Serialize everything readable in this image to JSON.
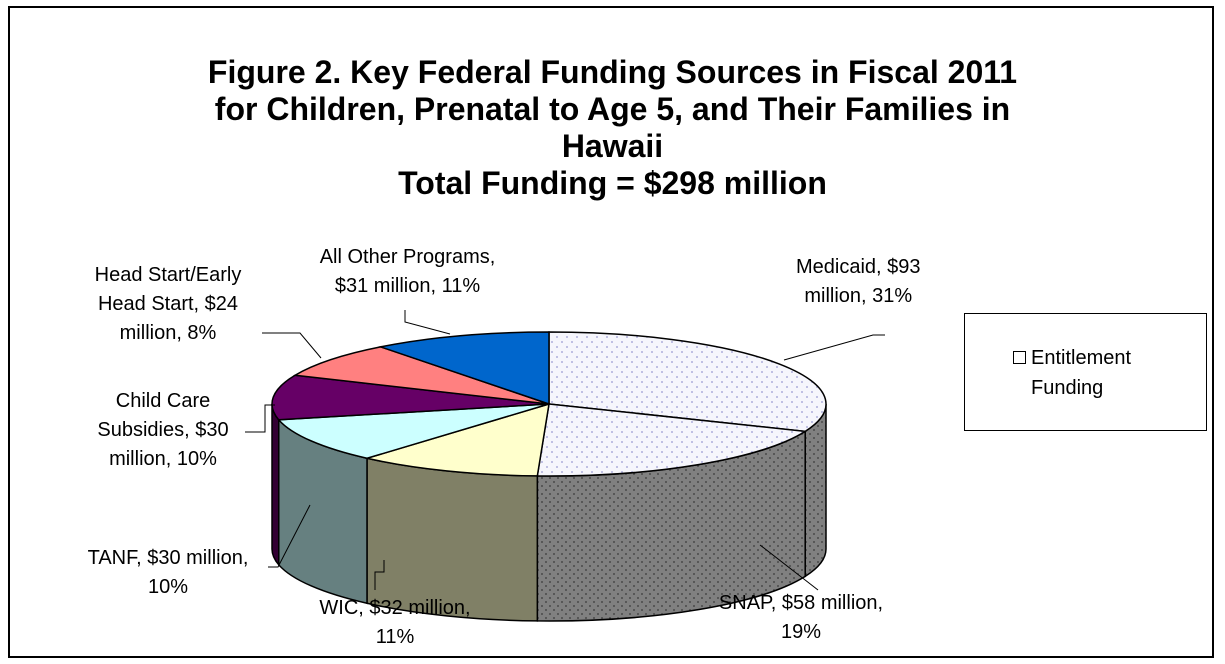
{
  "chart_data": {
    "type": "pie",
    "title": [
      "Figure 2. Key Federal Funding Sources in Fiscal 2011",
      "for Children, Prenatal to Age 5, and Their Families in",
      "Hawaii",
      "Total Funding = $298 million"
    ],
    "unit": "$ million",
    "total": 298,
    "slices": [
      {
        "name": "Medicaid",
        "value": 93,
        "percent": 31,
        "label_lines": [
          "Medicaid, $93",
          "million, 31%"
        ],
        "top": "#f4f4fc",
        "side": "#7f7f7f",
        "dotted": true
      },
      {
        "name": "SNAP",
        "value": 58,
        "percent": 19,
        "label_lines": [
          "SNAP, $58 million,",
          "19%"
        ],
        "top": "#f4f4fc",
        "side": "#7f7f7f",
        "dotted": true
      },
      {
        "name": "WIC",
        "value": 32,
        "percent": 11,
        "label_lines": [
          "WIC, $32 million,",
          "11%"
        ],
        "top": "#ffffcc",
        "side": "#808066",
        "dotted": false
      },
      {
        "name": "TANF",
        "value": 30,
        "percent": 10,
        "label_lines": [
          "TANF, $30 million,",
          "10%"
        ],
        "top": "#ccffff",
        "side": "#668080",
        "dotted": false
      },
      {
        "name": "Child Care Subsidies",
        "value": 30,
        "percent": 10,
        "label_lines": [
          "Child Care",
          "Subsidies, $30",
          "million, 10%"
        ],
        "top": "#660066",
        "side": "#330033",
        "dotted": false
      },
      {
        "name": "Head Start/Early Head Start",
        "value": 24,
        "percent": 8,
        "label_lines": [
          "Head Start/Early",
          "Head Start, $24",
          "million, 8%"
        ],
        "top": "#ff8080",
        "side": "#804040",
        "dotted": false
      },
      {
        "name": "All Other Programs",
        "value": 31,
        "percent": 11,
        "label_lines": [
          "All Other Programs,",
          "$31 million, 11%"
        ],
        "top": "#0066cc",
        "side": "#003366",
        "dotted": false
      }
    ],
    "legend": {
      "entries": [
        {
          "label_lines": [
            "Entitlement",
            "Funding"
          ],
          "swatch": "#ffffff"
        }
      ],
      "placement": "right"
    }
  }
}
